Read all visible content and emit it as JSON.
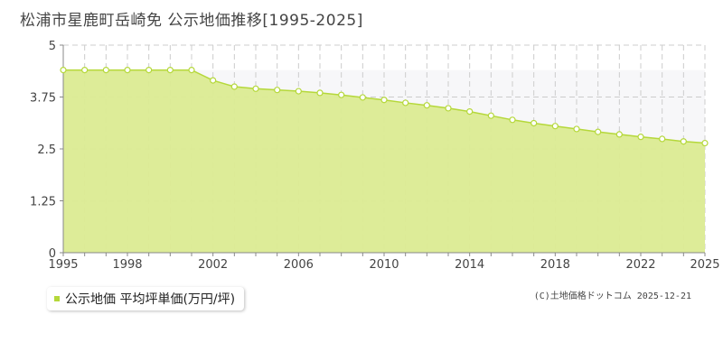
{
  "title": "松浦市星鹿町岳崎免 公示地価推移[1995-2025]",
  "legend_label": "公示地価 平均坪単価(万円/坪)",
  "credit": "(C)土地価格ドットコム 2025-12-21",
  "colors": {
    "fill": "#dbeb92",
    "line": "#b5d83a",
    "marker_fill": "#ffffff",
    "grid": "#cccccc",
    "shade": "#f7f7f9"
  },
  "chart_data": {
    "type": "area",
    "title": "松浦市星鹿町岳崎免 公示地価推移[1995-2025]",
    "xlabel": "",
    "ylabel": "",
    "xlim": [
      1995,
      2025
    ],
    "ylim": [
      0,
      5
    ],
    "y_ticks": [
      0,
      1.25,
      2.5,
      3.75,
      5
    ],
    "y_tick_labels": [
      "0",
      "1.25",
      "2.5",
      "3.75",
      "5"
    ],
    "x_ticks": [
      1995,
      1998,
      2002,
      2006,
      2010,
      2014,
      2018,
      2022,
      2025
    ],
    "grid": true,
    "series": [
      {
        "name": "公示地価 平均坪単価(万円/坪)",
        "x": [
          1995,
          1996,
          1997,
          1998,
          1999,
          2000,
          2001,
          2002,
          2003,
          2004,
          2005,
          2006,
          2007,
          2008,
          2009,
          2010,
          2011,
          2012,
          2013,
          2014,
          2015,
          2016,
          2017,
          2018,
          2019,
          2020,
          2021,
          2022,
          2023,
          2024,
          2025
        ],
        "values": [
          4.4,
          4.4,
          4.4,
          4.4,
          4.4,
          4.4,
          4.4,
          4.15,
          4.0,
          3.95,
          3.92,
          3.89,
          3.85,
          3.8,
          3.74,
          3.68,
          3.61,
          3.55,
          3.48,
          3.4,
          3.3,
          3.2,
          3.12,
          3.05,
          2.98,
          2.91,
          2.85,
          2.79,
          2.74,
          2.68,
          2.64
        ]
      }
    ]
  }
}
